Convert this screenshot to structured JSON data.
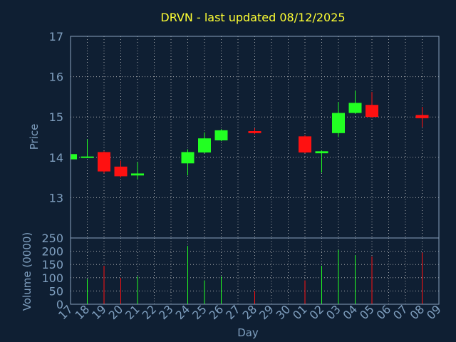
{
  "chart_data": [
    {
      "type": "candlestick",
      "title": "DRVN - last updated 08/12/2025",
      "ylabel": "Price",
      "ylim": [
        12.0,
        17.0
      ],
      "yticks": [
        "13",
        "14",
        "15",
        "16",
        "17"
      ],
      "grid": true,
      "candles": [
        {
          "day": "17",
          "open": 13.95,
          "high": 14.1,
          "low": 13.95,
          "close": 14.08
        },
        {
          "day": "18",
          "open": 14.0,
          "high": 14.45,
          "low": 13.98,
          "close": 14.02
        },
        {
          "day": "19",
          "open": 14.13,
          "high": 14.15,
          "low": 13.6,
          "close": 13.65
        },
        {
          "day": "20",
          "open": 13.77,
          "high": 13.92,
          "low": 13.5,
          "close": 13.53
        },
        {
          "day": "21",
          "open": 13.55,
          "high": 13.88,
          "low": 13.45,
          "close": 13.6
        },
        {
          "day": "24",
          "open": 13.85,
          "high": 14.2,
          "low": 13.55,
          "close": 14.13
        },
        {
          "day": "25",
          "open": 14.12,
          "high": 14.62,
          "low": 14.1,
          "close": 14.47
        },
        {
          "day": "26",
          "open": 14.42,
          "high": 14.7,
          "low": 14.4,
          "close": 14.67
        },
        {
          "day": "28",
          "open": 14.65,
          "high": 14.72,
          "low": 14.57,
          "close": 14.6
        },
        {
          "day": "01",
          "open": 14.52,
          "high": 14.55,
          "low": 14.1,
          "close": 14.12
        },
        {
          "day": "02",
          "open": 14.1,
          "high": 14.17,
          "low": 13.62,
          "close": 14.15
        },
        {
          "day": "03",
          "open": 14.6,
          "high": 15.37,
          "low": 14.5,
          "close": 15.1
        },
        {
          "day": "04",
          "open": 15.1,
          "high": 15.65,
          "low": 15.08,
          "close": 15.35
        },
        {
          "day": "05",
          "open": 15.3,
          "high": 15.62,
          "low": 14.98,
          "close": 15.0
        },
        {
          "day": "08",
          "open": 15.05,
          "high": 15.25,
          "low": 14.75,
          "close": 14.97
        }
      ]
    },
    {
      "type": "bar",
      "ylabel": "Volume (0000)",
      "xlabel": "Day",
      "ylim": [
        0,
        250
      ],
      "yticks": [
        "0",
        "50",
        "100",
        "150",
        "200",
        "250"
      ],
      "categories": [
        "17",
        "18",
        "19",
        "20",
        "21",
        "22",
        "23",
        "24",
        "25",
        "26",
        "27",
        "28",
        "29",
        "30",
        "01",
        "02",
        "03",
        "04",
        "05",
        "06",
        "07",
        "08",
        "09"
      ],
      "volumes": [
        {
          "day": "18",
          "value": 95,
          "dir": "up"
        },
        {
          "day": "19",
          "value": 145,
          "dir": "down"
        },
        {
          "day": "20",
          "value": 100,
          "dir": "down"
        },
        {
          "day": "21",
          "value": 105,
          "dir": "up"
        },
        {
          "day": "24",
          "value": 220,
          "dir": "up"
        },
        {
          "day": "25",
          "value": 90,
          "dir": "up"
        },
        {
          "day": "26",
          "value": 105,
          "dir": "up"
        },
        {
          "day": "28",
          "value": 50,
          "dir": "down"
        },
        {
          "day": "01",
          "value": 90,
          "dir": "down"
        },
        {
          "day": "02",
          "value": 145,
          "dir": "up"
        },
        {
          "day": "03",
          "value": 205,
          "dir": "up"
        },
        {
          "day": "04",
          "value": 185,
          "dir": "up"
        },
        {
          "day": "05",
          "value": 180,
          "dir": "down"
        },
        {
          "day": "08",
          "value": 195,
          "dir": "down"
        }
      ]
    }
  ],
  "colors": {
    "background": "#0f1f33",
    "axis_text": "#7f9fbf",
    "title": "#ffff33",
    "up": "#22ff22",
    "down": "#ff1111",
    "grid": "#c8c8c8",
    "frame": "#8aa2bc"
  }
}
